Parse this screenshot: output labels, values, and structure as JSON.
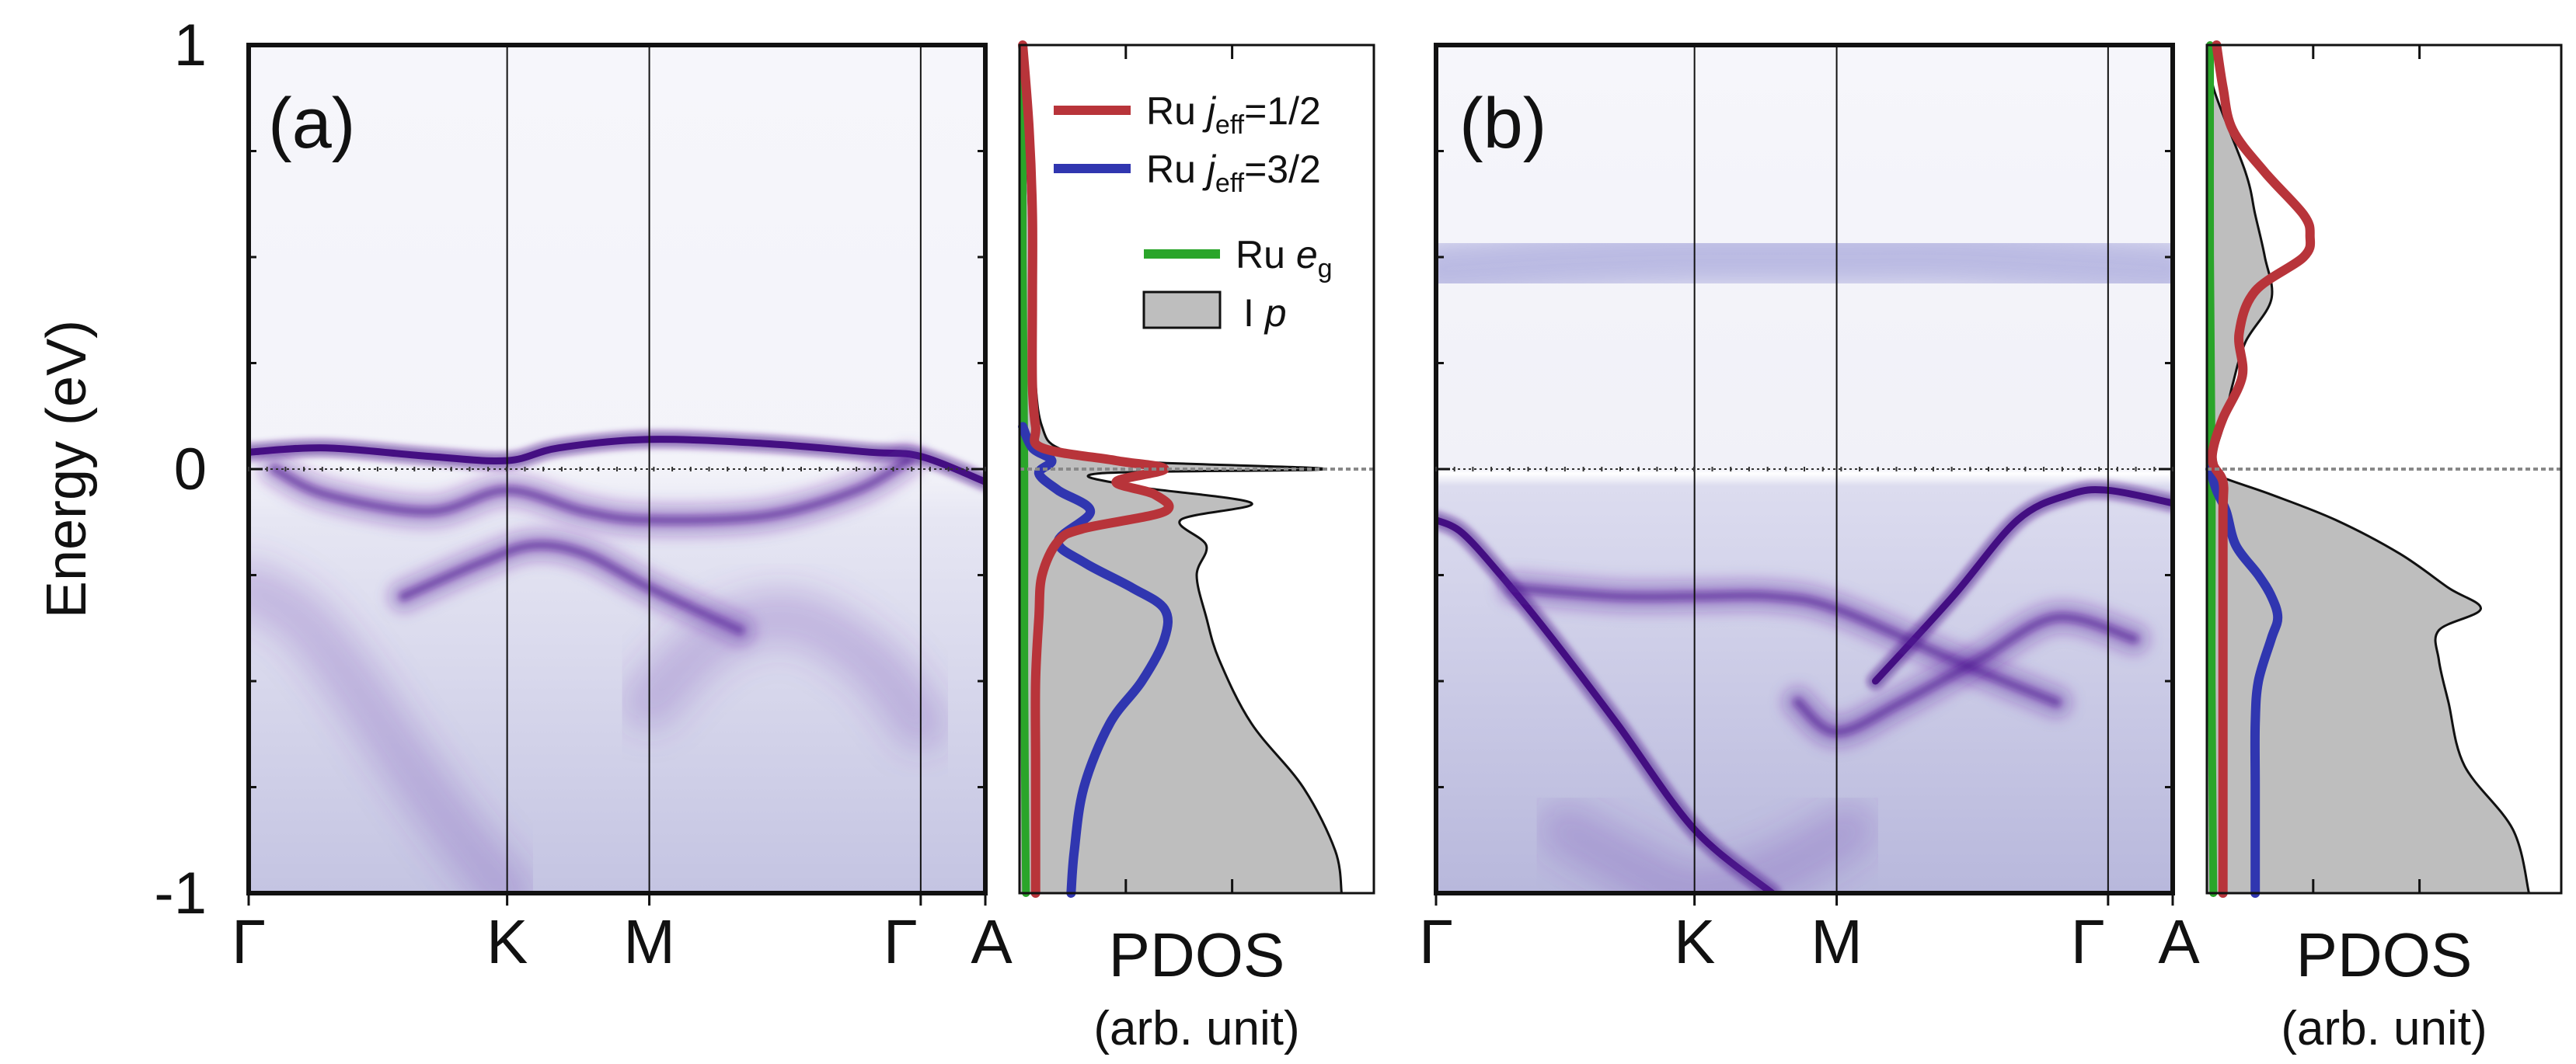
{
  "figure": {
    "ylabel": "Energy (eV)",
    "panels": [
      {
        "label": "(a)",
        "kpath_labels": [
          "Γ",
          "K",
          "M",
          "Γ",
          "A"
        ],
        "kpath_positions": [
          0,
          1,
          1.55,
          2.6,
          2.85
        ],
        "ylim": [
          -1,
          1
        ],
        "yticks": [
          -1,
          0,
          1
        ],
        "bands": [
          {
            "name": "flat-band-above-ef",
            "weight": "strong",
            "k": [
              0,
              0.3,
              0.7,
              1.0,
              1.2,
              1.55,
              2.0,
              2.4,
              2.6,
              2.85
            ],
            "e": [
              0.04,
              0.05,
              0.03,
              0.02,
              0.05,
              0.07,
              0.06,
              0.04,
              0.03,
              -0.03
            ]
          },
          {
            "name": "band-near-ef-low",
            "weight": "medium",
            "k": [
              0.1,
              0.3,
              0.7,
              1.0,
              1.3,
              1.55,
              2.0,
              2.35,
              2.55
            ],
            "e": [
              0.0,
              -0.06,
              -0.1,
              -0.05,
              -0.1,
              -0.12,
              -0.11,
              -0.05,
              0.02
            ]
          },
          {
            "name": "band-minus-0.2",
            "weight": "medium",
            "k": [
              0.6,
              0.9,
              1.1,
              1.3,
              1.55,
              1.9
            ],
            "e": [
              -0.3,
              -0.22,
              -0.18,
              -0.2,
              -0.28,
              -0.38
            ]
          },
          {
            "name": "dispersive-left",
            "weight": "faint",
            "k": [
              0,
              0.2,
              0.4,
              0.6,
              0.8,
              1.0
            ],
            "e": [
              -0.28,
              -0.35,
              -0.5,
              -0.68,
              -0.85,
              -1.0
            ]
          },
          {
            "name": "dispersive-right",
            "weight": "faint",
            "k": [
              1.55,
              1.8,
              2.1,
              2.4,
              2.6
            ],
            "e": [
              -0.55,
              -0.4,
              -0.35,
              -0.45,
              -0.6
            ]
          }
        ]
      },
      {
        "label": "(b)",
        "kpath_labels": [
          "Γ",
          "K",
          "M",
          "Γ",
          "A"
        ],
        "kpath_positions": [
          0,
          1,
          1.55,
          2.6,
          2.85
        ],
        "ylim": [
          -1,
          1
        ],
        "yticks": [],
        "bands": [
          {
            "name": "upper-hubbard-band",
            "weight": "diffuse",
            "k": [
              0,
              0.5,
              1.0,
              1.55,
              2.0,
              2.6,
              2.85
            ],
            "e": [
              0.47,
              0.49,
              0.5,
              0.5,
              0.5,
              0.48,
              0.47
            ]
          },
          {
            "name": "valence-left-arc",
            "weight": "strong",
            "k": [
              0,
              0.1,
              0.25,
              0.45,
              0.7,
              1.0,
              1.3
            ],
            "e": [
              -0.12,
              -0.15,
              -0.25,
              -0.4,
              -0.6,
              -0.85,
              -1.0
            ]
          },
          {
            "name": "valence-right-arc",
            "weight": "strong",
            "k": [
              1.7,
              2.0,
              2.25,
              2.45,
              2.6,
              2.85
            ],
            "e": [
              -0.5,
              -0.3,
              -0.12,
              -0.06,
              -0.05,
              -0.08
            ]
          },
          {
            "name": "band-minus-0.3",
            "weight": "medium",
            "k": [
              0.3,
              0.7,
              1.0,
              1.3,
              1.55,
              2.0,
              2.4
            ],
            "e": [
              -0.28,
              -0.3,
              -0.3,
              -0.3,
              -0.33,
              -0.45,
              -0.55
            ]
          },
          {
            "name": "band-M-dip",
            "weight": "medium",
            "k": [
              1.4,
              1.55,
              1.8,
              2.1,
              2.4,
              2.7
            ],
            "e": [
              -0.55,
              -0.62,
              -0.55,
              -0.45,
              -0.35,
              -0.4
            ]
          },
          {
            "name": "deep-valence",
            "weight": "faint",
            "k": [
              0.5,
              0.8,
              1.0,
              1.3,
              1.6
            ],
            "e": [
              -0.85,
              -0.95,
              -1.0,
              -0.95,
              -0.85
            ]
          }
        ]
      }
    ],
    "pdos_panels": [
      {
        "xlabel": "PDOS",
        "xlabel_sub": "(arb. unit)",
        "legend": [
          {
            "label_main": "Ru ",
            "label_italic": "j",
            "label_sub": "eff",
            "label_tail": "=1/2",
            "color": "#b8343a",
            "kind": "line"
          },
          {
            "label_main": "Ru ",
            "label_italic": "j",
            "label_sub": "eff",
            "label_tail": "=3/2",
            "color": "#3036b0",
            "kind": "line"
          },
          {
            "label_main": "Ru ",
            "label_italic": "e",
            "label_sub": "g",
            "label_tail": "",
            "color": "#2aa52a",
            "kind": "line"
          },
          {
            "label_main": "I ",
            "label_italic": "p",
            "label_sub": "",
            "label_tail": "",
            "color": "#bebebe",
            "kind": "fill"
          }
        ],
        "series": {
          "I_p": {
            "e": [
              1,
              0.8,
              0.6,
              0.4,
              0.2,
              0.1,
              0.05,
              0.02,
              0.0,
              -0.01,
              -0.04,
              -0.08,
              -0.12,
              -0.18,
              -0.25,
              -0.35,
              -0.45,
              -0.6,
              -0.75,
              -0.9,
              -1.0
            ],
            "dos": [
              0.01,
              0.02,
              0.03,
              0.04,
              0.05,
              0.07,
              0.12,
              0.3,
              0.95,
              0.25,
              0.35,
              0.72,
              0.5,
              0.58,
              0.55,
              0.58,
              0.62,
              0.72,
              0.88,
              0.98,
              1.0
            ]
          },
          "jeff_1_2": {
            "e": [
              1,
              0.8,
              0.6,
              0.4,
              0.2,
              0.1,
              0.05,
              0.02,
              0.0,
              -0.03,
              -0.06,
              -0.1,
              -0.14,
              -0.17,
              -0.25,
              -0.35,
              -0.5,
              -0.7,
              -1.0
            ],
            "dos": [
              0.01,
              0.03,
              0.04,
              0.04,
              0.04,
              0.05,
              0.07,
              0.3,
              0.45,
              0.3,
              0.42,
              0.45,
              0.2,
              0.12,
              0.07,
              0.06,
              0.05,
              0.05,
              0.05
            ]
          },
          "jeff_3_2": {
            "e": [
              0.1,
              0.05,
              0.02,
              -0.01,
              -0.05,
              -0.1,
              -0.17,
              -0.22,
              -0.28,
              -0.33,
              -0.4,
              -0.5,
              -0.6,
              -0.75,
              -0.9,
              -1.0
            ],
            "dos": [
              0.01,
              0.04,
              0.1,
              0.06,
              0.12,
              0.22,
              0.12,
              0.2,
              0.35,
              0.45,
              0.45,
              0.38,
              0.28,
              0.2,
              0.17,
              0.16
            ]
          },
          "eg": {
            "e": [
              1,
              0.5,
              0.0,
              -0.5,
              -1.0
            ],
            "dos": [
              0.01,
              0.01,
              0.015,
              0.015,
              0.02
            ]
          }
        },
        "max_dos": 1.1
      },
      {
        "xlabel": "PDOS",
        "xlabel_sub": "(arb. unit)",
        "legend": [],
        "series": {
          "I_p": {
            "e": [
              1,
              0.9,
              0.7,
              0.6,
              0.5,
              0.4,
              0.3,
              0.2,
              0.1,
              0.05,
              0.0,
              -0.02,
              -0.06,
              -0.12,
              -0.2,
              -0.28,
              -0.33,
              -0.38,
              -0.45,
              -0.55,
              -0.7,
              -0.85,
              -1.0
            ],
            "dos": [
              0.01,
              0.02,
              0.12,
              0.15,
              0.18,
              0.2,
              0.12,
              0.08,
              0.05,
              0.03,
              0.02,
              0.05,
              0.2,
              0.4,
              0.6,
              0.75,
              0.85,
              0.72,
              0.72,
              0.75,
              0.8,
              0.95,
              1.0
            ]
          },
          "jeff_1_2": {
            "e": [
              1,
              0.9,
              0.8,
              0.7,
              0.6,
              0.55,
              0.5,
              0.42,
              0.32,
              0.22,
              0.12,
              0.05,
              0.01,
              -0.03,
              -0.1,
              -0.3,
              -0.6,
              -1.0
            ],
            "dos": [
              0.03,
              0.05,
              0.08,
              0.18,
              0.3,
              0.32,
              0.3,
              0.15,
              0.1,
              0.11,
              0.05,
              0.02,
              0.02,
              0.05,
              0.05,
              0.05,
              0.05,
              0.05
            ]
          },
          "jeff_3_2": {
            "e": [
              0.0,
              -0.05,
              -0.1,
              -0.18,
              -0.25,
              -0.3,
              -0.35,
              -0.4,
              -0.5,
              -0.6,
              -0.75,
              -1.0
            ],
            "dos": [
              0.01,
              0.03,
              0.06,
              0.09,
              0.16,
              0.2,
              0.22,
              0.2,
              0.16,
              0.15,
              0.15,
              0.15
            ]
          },
          "eg": {
            "e": [
              1,
              0.5,
              0.0,
              -0.5,
              -1.0
            ],
            "dos": [
              0.01,
              0.01,
              0.015,
              0.015,
              0.02
            ]
          }
        },
        "max_dos": 1.1
      }
    ]
  },
  "chart_data": [
    {
      "type": "heatmap",
      "title": "(a)",
      "xlabel": "",
      "ylabel": "Energy (eV)",
      "x": [
        "Γ",
        "K",
        "M",
        "Γ",
        "A"
      ],
      "ylim": [
        -1,
        1
      ]
    },
    {
      "type": "area",
      "title": "PDOS (a)",
      "xlabel": "PDOS (arb. unit)",
      "ylabel": "Energy (eV)",
      "series": [
        {
          "name": "Ru jeff=1/2"
        },
        {
          "name": "Ru jeff=3/2"
        },
        {
          "name": "Ru eg"
        },
        {
          "name": "I p"
        }
      ],
      "ylim": [
        -1,
        1
      ]
    },
    {
      "type": "heatmap",
      "title": "(b)",
      "xlabel": "",
      "ylabel": "Energy (eV)",
      "x": [
        "Γ",
        "K",
        "M",
        "Γ",
        "A"
      ],
      "ylim": [
        -1,
        1
      ]
    },
    {
      "type": "area",
      "title": "PDOS (b)",
      "xlabel": "PDOS (arb. unit)",
      "ylabel": "Energy (eV)",
      "series": [
        {
          "name": "Ru jeff=1/2"
        },
        {
          "name": "Ru jeff=3/2"
        },
        {
          "name": "Ru eg"
        },
        {
          "name": "I p"
        }
      ],
      "ylim": [
        -1,
        1
      ]
    }
  ]
}
